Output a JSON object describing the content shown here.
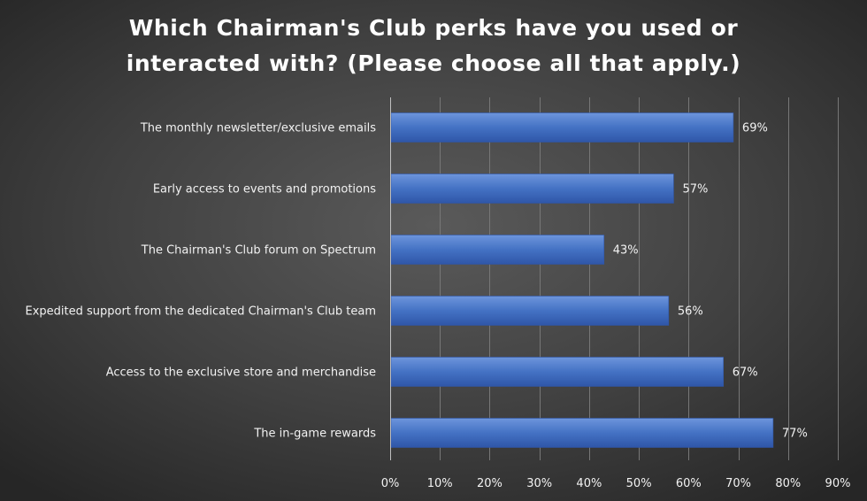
{
  "chart_data": {
    "type": "bar",
    "orientation": "horizontal",
    "title": "Which Chairman's Club perks have you used or interacted with? (Please choose all that apply.)",
    "title_lines": [
      "Which Chairman's Club perks have you used or",
      "interacted with? (Please choose all that apply.)"
    ],
    "categories": [
      "The monthly newsletter/exclusive emails",
      "Early access to events and promotions",
      "The Chairman's Club forum on Spectrum",
      "Expedited support from the dedicated Chairman's Club team",
      "Access to the exclusive store and merchandise",
      "The in-game rewards"
    ],
    "values": [
      69,
      57,
      43,
      56,
      67,
      77
    ],
    "value_labels": [
      "69%",
      "57%",
      "43%",
      "56%",
      "67%",
      "77%"
    ],
    "xlim": [
      0,
      90
    ],
    "x_ticks": [
      0,
      10,
      20,
      30,
      40,
      50,
      60,
      70,
      80,
      90
    ],
    "x_tick_labels": [
      "0%",
      "10%",
      "20%",
      "30%",
      "40%",
      "50%",
      "60%",
      "70%",
      "80%",
      "90%"
    ],
    "xlabel": "",
    "ylabel": "",
    "grid": true,
    "legend": "none",
    "colors": {
      "bar": "#4472c4",
      "bar_light": "#6d95dc",
      "bar_dark": "#2f56a8",
      "background": "#404040",
      "text": "#f2f2f2",
      "grid": "#777777"
    }
  }
}
